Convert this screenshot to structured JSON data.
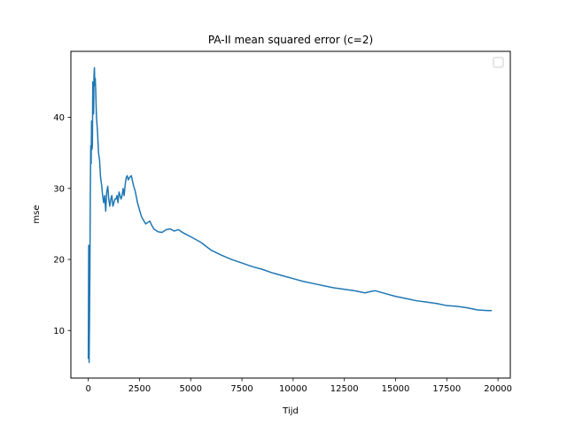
{
  "chart_data": {
    "type": "line",
    "title": "PA-II mean squared error (c=2)",
    "xlabel": "Tijd",
    "ylabel": "mse",
    "xlim": [
      -850,
      20600
    ],
    "ylim": [
      3.3,
      49.3
    ],
    "xticks": [
      0,
      2500,
      5000,
      7500,
      10000,
      12500,
      15000,
      17500,
      20000
    ],
    "yticks": [
      10,
      20,
      30,
      40
    ],
    "grid": false,
    "legend": "top-right (empty)",
    "line_color": "#1f77b4",
    "series": [
      {
        "x": [
          0,
          20,
          40,
          60,
          80,
          100,
          120,
          140,
          160,
          180,
          200,
          220,
          240,
          260,
          280,
          300,
          320,
          340,
          360,
          400,
          450,
          500,
          550,
          600,
          650,
          700,
          750,
          800,
          850,
          900,
          950,
          1000,
          1050,
          1100,
          1150,
          1200,
          1250,
          1300,
          1350,
          1400,
          1450,
          1500,
          1550,
          1600,
          1650,
          1700,
          1750,
          1800,
          1850,
          1900,
          1950,
          2000,
          2100,
          2200,
          2300,
          2400,
          2500,
          2600,
          2700,
          2800,
          2900,
          3000,
          3100,
          3200,
          3400,
          3600,
          3800,
          4000,
          4200,
          4400,
          4600,
          4800,
          5000,
          5500,
          6000,
          6500,
          7000,
          7500,
          8000,
          8500,
          9000,
          9500,
          10000,
          10500,
          11000,
          11500,
          12000,
          12500,
          13000,
          13500,
          13800,
          14000,
          14500,
          15000,
          15500,
          16000,
          16500,
          17000,
          17500,
          18000,
          18500,
          19000,
          19500,
          19700
        ],
        "y": [
          6.0,
          22.0,
          5.5,
          11.5,
          19.0,
          30.0,
          36.0,
          33.5,
          39.5,
          35.5,
          36.0,
          45.0,
          43.5,
          40.5,
          46.0,
          47.0,
          44.5,
          45.5,
          44.0,
          40.0,
          38.0,
          35.0,
          34.0,
          31.5,
          30.5,
          29.0,
          28.0,
          29.0,
          26.8,
          29.5,
          30.3,
          28.5,
          27.5,
          28.5,
          29.0,
          27.5,
          28.0,
          28.5,
          28.5,
          29.0,
          28.0,
          29.5,
          29.0,
          28.5,
          29.0,
          30.0,
          29.0,
          30.5,
          31.5,
          31.8,
          31.2,
          31.5,
          31.8,
          30.5,
          29.5,
          28.0,
          27.0,
          26.0,
          25.5,
          25.0,
          25.2,
          25.4,
          24.8,
          24.3,
          23.9,
          23.8,
          24.2,
          24.3,
          24.0,
          24.2,
          23.8,
          23.5,
          23.2,
          22.4,
          21.3,
          20.6,
          20.0,
          19.5,
          19.0,
          18.6,
          18.1,
          17.7,
          17.3,
          16.9,
          16.6,
          16.3,
          16.0,
          15.8,
          15.6,
          15.3,
          15.5,
          15.6,
          15.2,
          14.8,
          14.5,
          14.2,
          14.0,
          13.8,
          13.5,
          13.4,
          13.2,
          12.9,
          12.8,
          12.8
        ]
      }
    ]
  }
}
